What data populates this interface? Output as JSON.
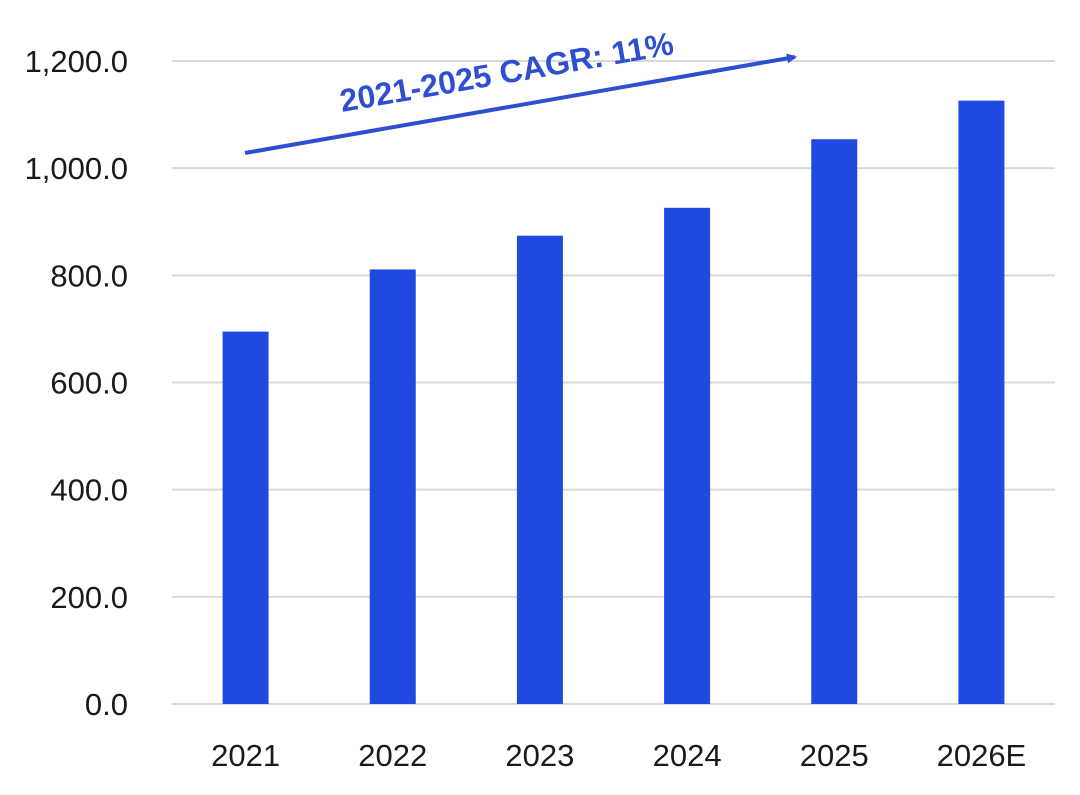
{
  "chart_data": {
    "type": "bar",
    "categories": [
      "2021",
      "2022",
      "2023",
      "2024",
      "2025",
      "2026E"
    ],
    "values": [
      695,
      811,
      874,
      926,
      1054,
      1126
    ],
    "ylim": [
      0,
      1200
    ],
    "y_ticks": [
      0,
      200,
      400,
      600,
      800,
      1000,
      1200
    ],
    "y_tick_labels": [
      "0.0",
      "200.0",
      "400.0",
      "600.0",
      "800.0",
      "1,000.0",
      "1,200.0"
    ],
    "grid": true,
    "bar_color": "#2049e0",
    "grid_color": "#d9d9d9",
    "annotation": {
      "text": "2021-2025 CAGR: 11%",
      "color": "#2e4fd0"
    }
  }
}
